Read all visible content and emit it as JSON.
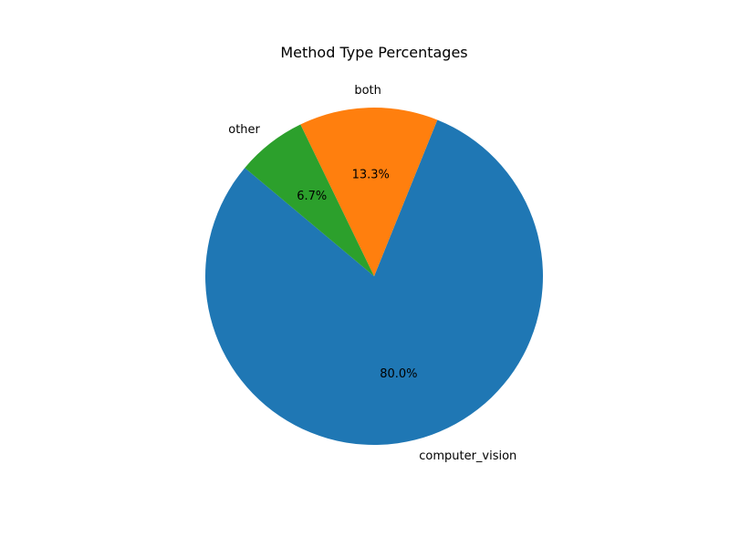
{
  "chart_data": {
    "type": "pie",
    "title": "Method Type Percentages",
    "categories": [
      "computer_vision",
      "both",
      "other"
    ],
    "values": [
      80.0,
      13.3,
      6.7
    ],
    "percent_labels": [
      "80.0%",
      "13.3%",
      "6.7%"
    ],
    "colors": [
      "#1f77b4",
      "#ff7f0e",
      "#2ca02c"
    ],
    "start_angle_deg": 140,
    "direction": "counterclockwise",
    "legend": "none"
  }
}
